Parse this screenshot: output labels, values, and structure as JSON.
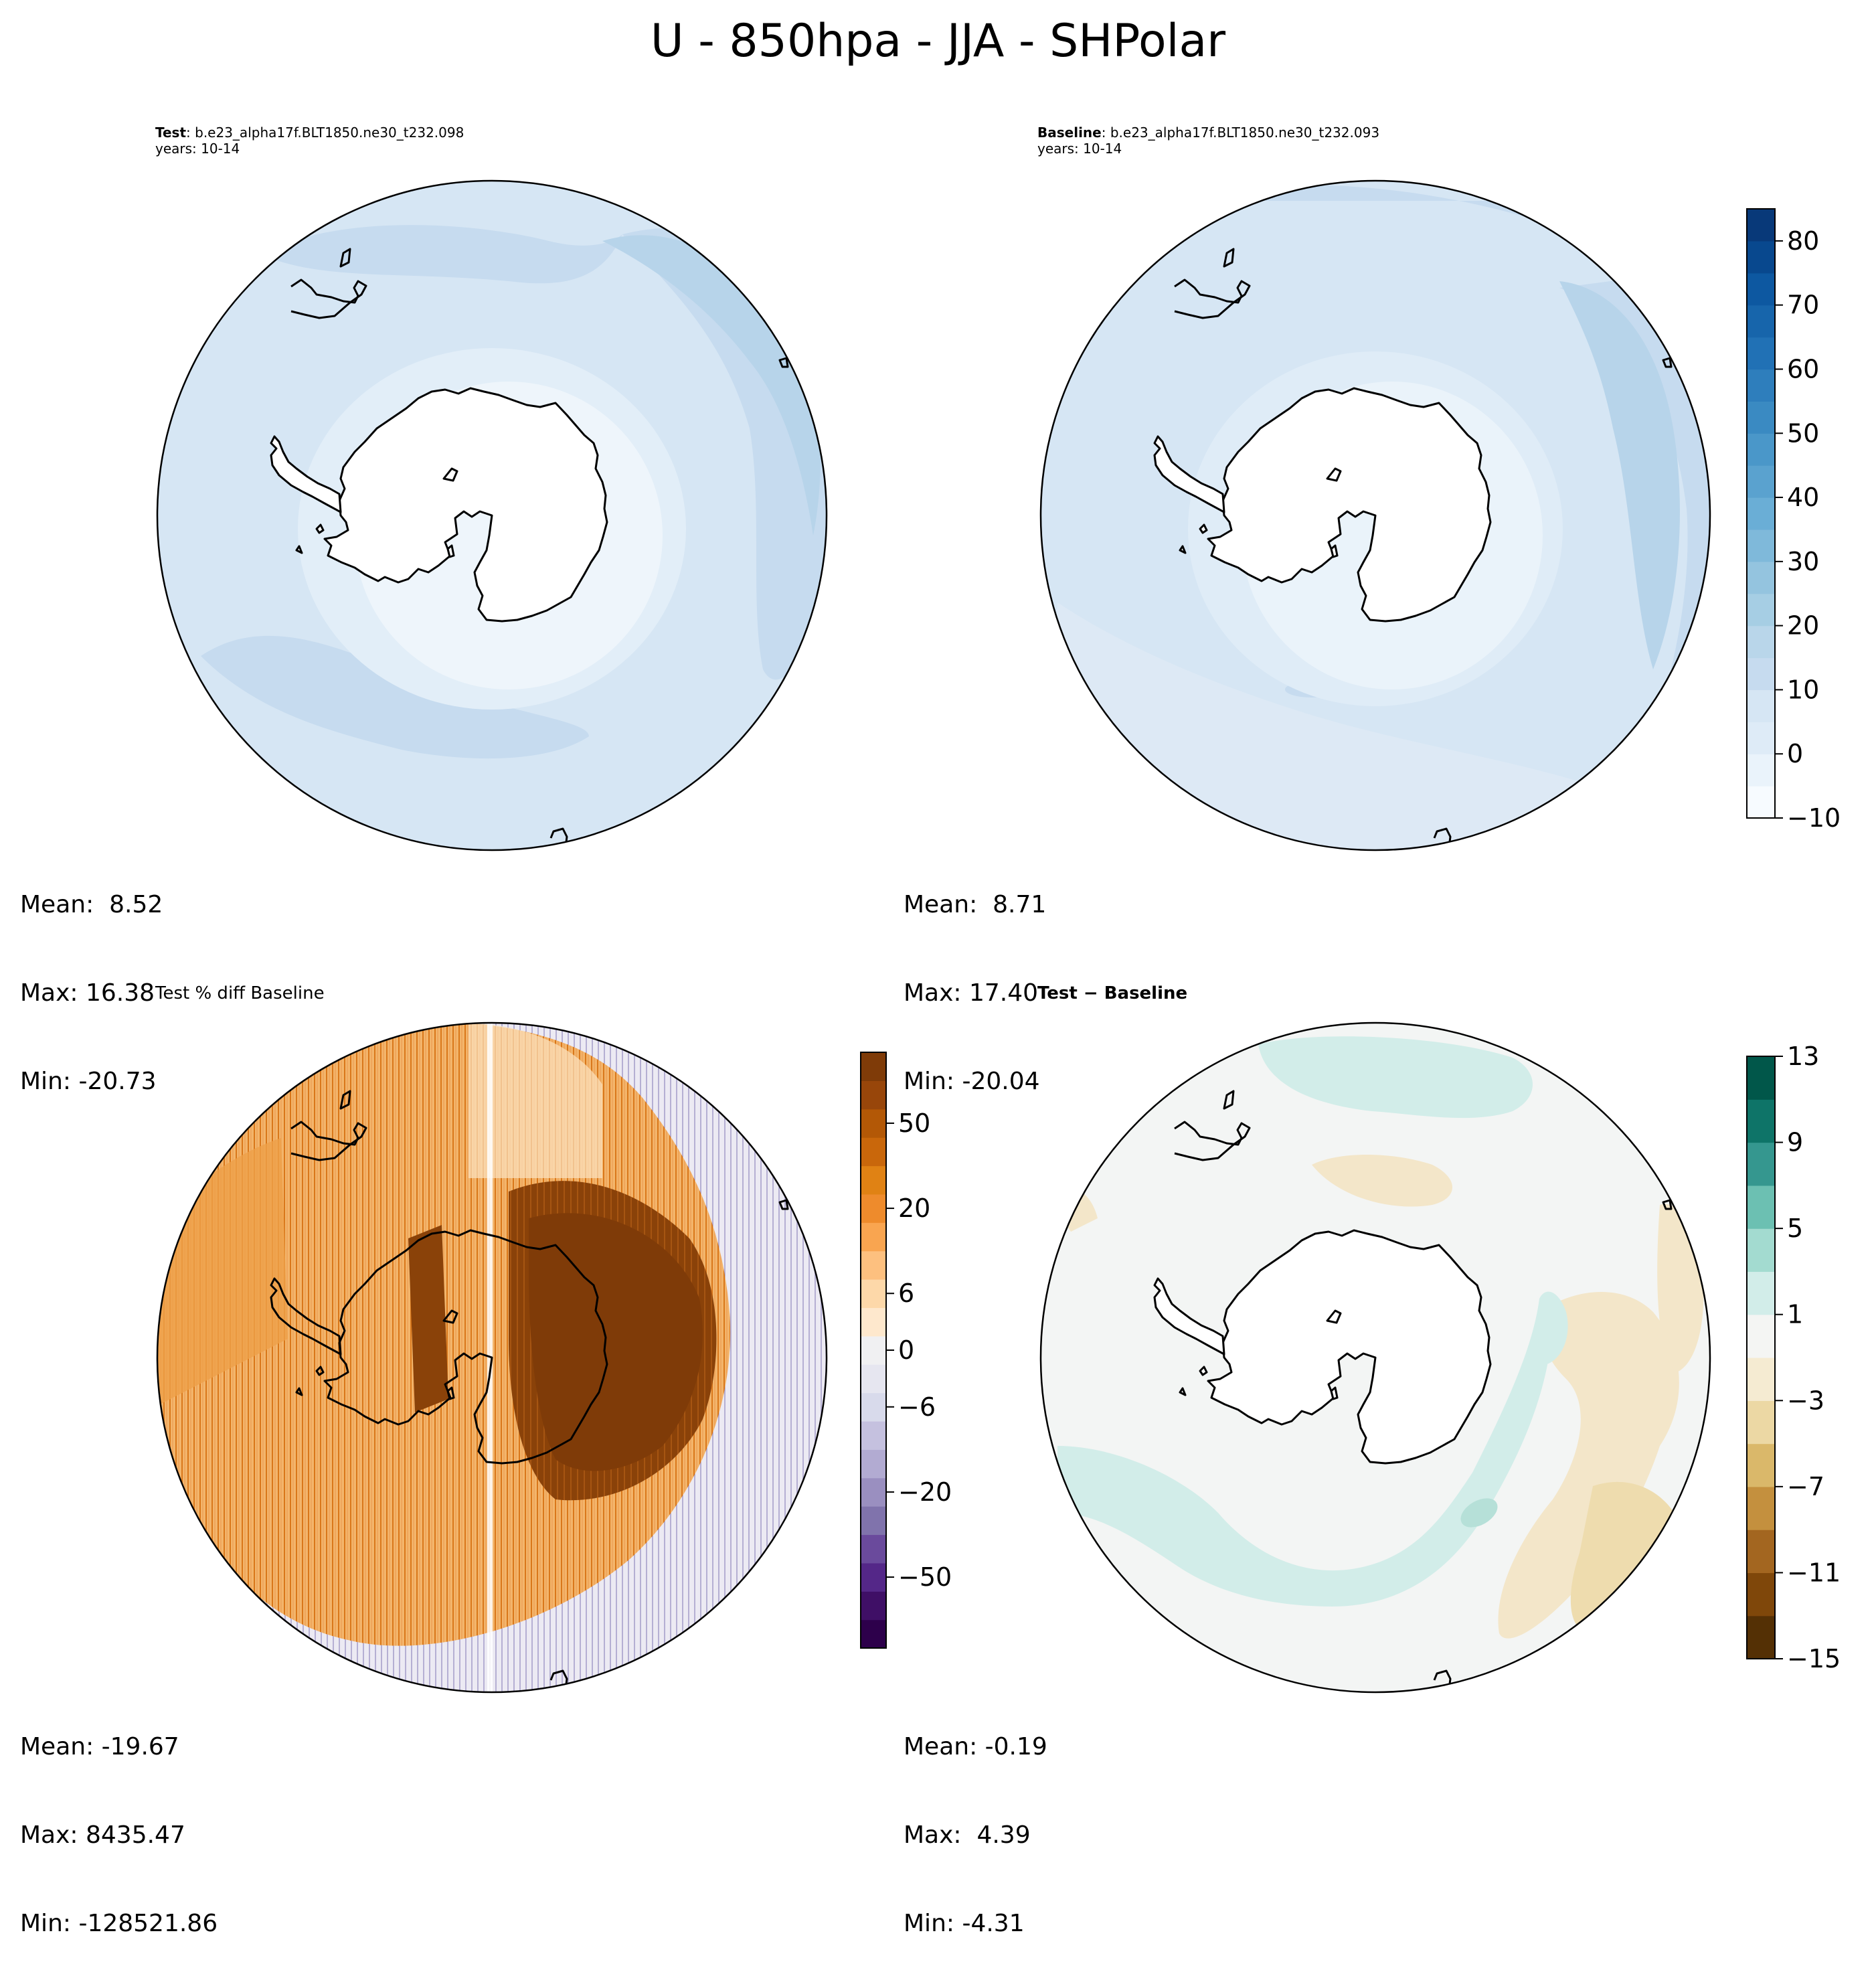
{
  "figure": {
    "title": "U - 850hpa - JJA - SHPolar"
  },
  "panels": {
    "test": {
      "label_bold": "Test",
      "label_sep": ": ",
      "case": "b.e23_alpha17f.BLT1850.ne30_t232.098",
      "years": "years: 10-14",
      "stats": {
        "mean": "Mean:  8.52",
        "max": "Max: 16.38",
        "min": "Min: -20.73"
      }
    },
    "baseline": {
      "label_bold": "Baseline",
      "label_sep": ": ",
      "case": "b.e23_alpha17f.BLT1850.ne30_t232.093",
      "years": "years: 10-14",
      "stats": {
        "mean": "Mean:  8.71",
        "max": "Max: 17.40",
        "min": "Min: -20.04"
      }
    },
    "pct_diff": {
      "label": "Test % diff Baseline",
      "stats": {
        "mean": "Mean: -19.67",
        "max": "Max: 8435.47",
        "min": "Min: -128521.86"
      }
    },
    "diff": {
      "label": "Test − Baseline",
      "stats": {
        "mean": "Mean: -0.19",
        "max": "Max:  4.39",
        "min": "Min: -4.31"
      }
    }
  },
  "colorbars": {
    "main": {
      "colormap": "Blues",
      "range": [
        -10,
        85
      ],
      "ticks": [
        "80",
        "70",
        "60",
        "50",
        "40",
        "30",
        "20",
        "10",
        "0",
        "−10"
      ],
      "tick_values": [
        80,
        70,
        60,
        50,
        40,
        30,
        20,
        10,
        0,
        -10
      ]
    },
    "pct": {
      "colormap": "PuOr_r",
      "ticks": [
        "50",
        "20",
        "6",
        "0",
        "−6",
        "−20",
        "−50"
      ]
    },
    "diff": {
      "colormap": "BrBG",
      "range": [
        -15,
        13
      ],
      "ticks": [
        "13",
        "9",
        "5",
        "1",
        "−3",
        "−7",
        "−11",
        "−15"
      ],
      "tick_values": [
        13,
        9,
        5,
        1,
        -3,
        -7,
        -11,
        -15
      ]
    }
  },
  "colors": {
    "blue_light": "#d6e6f4",
    "blue_mid": "#c6dbef",
    "blue_dark": "#b7d4ea",
    "orange_dark": "#7f3b08",
    "orange_mid": "#e08214",
    "purple_light": "#d8daeb",
    "teal_light": "#d2ede9",
    "tan_light": "#f3e6c9",
    "neutral": "#f3f5f4"
  }
}
